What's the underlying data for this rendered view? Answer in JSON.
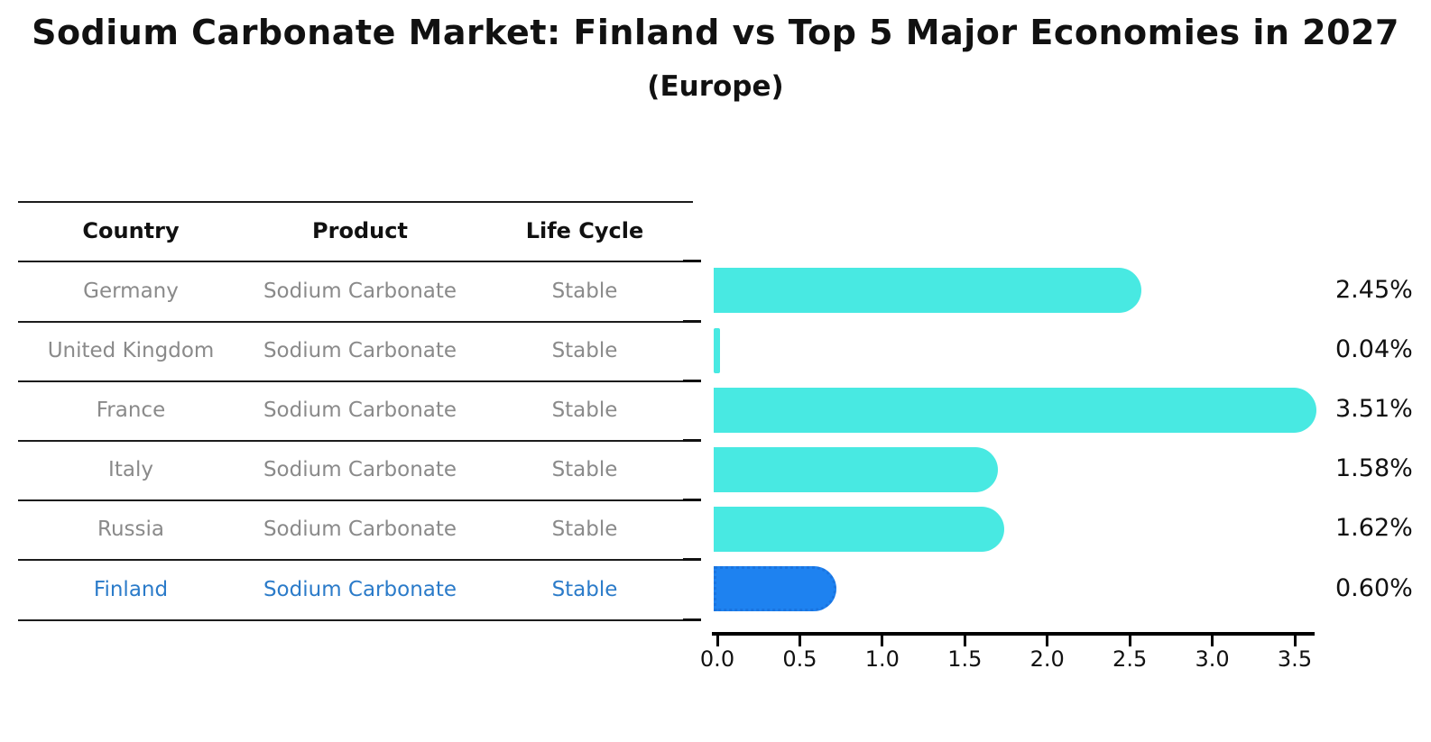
{
  "title": "Sodium Carbonate Market: Finland vs Top 5 Major Economies in 2027",
  "subtitle": "(Europe)",
  "table": {
    "headers": [
      "Country",
      "Product",
      "Life Cycle"
    ],
    "rows": [
      {
        "country": "Germany",
        "product": "Sodium Carbonate",
        "life_cycle": "Stable",
        "highlight": false
      },
      {
        "country": "United Kingdom",
        "product": "Sodium Carbonate",
        "life_cycle": "Stable",
        "highlight": false
      },
      {
        "country": "France",
        "product": "Sodium Carbonate",
        "life_cycle": "Stable",
        "highlight": false
      },
      {
        "country": "Italy",
        "product": "Sodium Carbonate",
        "life_cycle": "Stable",
        "highlight": false
      },
      {
        "country": "Russia",
        "product": "Sodium Carbonate",
        "life_cycle": "Stable",
        "highlight": true
      }
    ],
    "highlight_row": {
      "country": "Finland",
      "product": "Sodium Carbonate",
      "life_cycle": "Stable"
    }
  },
  "chart_data": {
    "type": "bar",
    "orientation": "horizontal",
    "title": "Sodium Carbonate Market: Finland vs Top 5 Major Economies in 2027 (Europe)",
    "categories": [
      "Germany",
      "United Kingdom",
      "France",
      "Italy",
      "Russia",
      "Finland"
    ],
    "values": [
      2.45,
      0.04,
      3.51,
      1.58,
      1.62,
      0.6
    ],
    "value_labels": [
      "2.45%",
      "0.04%",
      "3.51%",
      "1.58%",
      "1.62%",
      "0.60%"
    ],
    "x_ticks": [
      "0.0",
      "0.5",
      "1.0",
      "1.5",
      "2.0",
      "2.5",
      "3.0",
      "3.5"
    ],
    "xlim": [
      0,
      3.65
    ],
    "xlabel": "",
    "ylabel": "",
    "grid": false,
    "legend": "none",
    "highlight_index": 5,
    "bar_color": "#48e9e2",
    "highlight_bar_color": "#1e82f0",
    "highlight_text_color": "#2b7bc9",
    "table_text_color": "#8a8a8a"
  }
}
